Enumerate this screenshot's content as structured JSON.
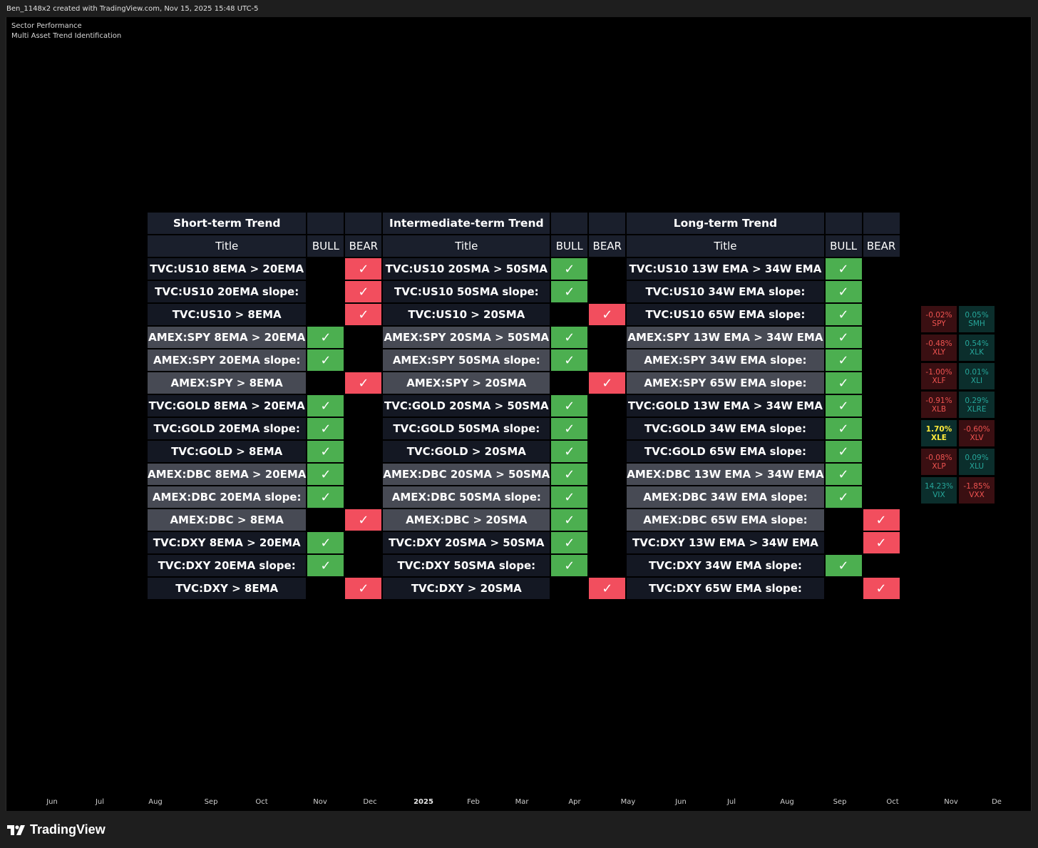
{
  "header": {
    "caption": "Ben_1148x2 created with TradingView.com, Nov 15, 2025 15:48 UTC-5"
  },
  "indicators": {
    "line1": "Sector Performance",
    "line2": "Multi Asset Trend Identification"
  },
  "table": {
    "groups": [
      {
        "title": "Short-term Trend",
        "col_title": "Title",
        "col_bull": "BULL",
        "col_bear": "BEAR"
      },
      {
        "title": "Intermediate-term Trend",
        "col_title": "Title",
        "col_bull": "BULL",
        "col_bear": "BEAR"
      },
      {
        "title": "Long-term Trend",
        "col_title": "Title",
        "col_bull": "BULL",
        "col_bear": "BEAR"
      }
    ],
    "check": "✓",
    "rows": [
      {
        "shade": "dark",
        "cells": [
          {
            "t": "TVC:US10 8EMA > 20EMA",
            "s": "bear"
          },
          {
            "t": "TVC:US10 20SMA > 50SMA",
            "s": "bull"
          },
          {
            "t": "TVC:US10 13W EMA > 34W EMA",
            "s": "bull"
          }
        ]
      },
      {
        "shade": "dark",
        "cells": [
          {
            "t": "TVC:US10 20EMA slope:",
            "s": "bear"
          },
          {
            "t": "TVC:US10 50SMA slope:",
            "s": "bull"
          },
          {
            "t": "TVC:US10 34W EMA slope:",
            "s": "bull"
          }
        ]
      },
      {
        "shade": "dark",
        "cells": [
          {
            "t": "TVC:US10 > 8EMA",
            "s": "bear"
          },
          {
            "t": "TVC:US10 > 20SMA",
            "s": "bear"
          },
          {
            "t": "TVC:US10 65W EMA slope:",
            "s": "bull"
          }
        ]
      },
      {
        "shade": "light",
        "cells": [
          {
            "t": "AMEX:SPY 8EMA > 20EMA",
            "s": "bull"
          },
          {
            "t": "AMEX:SPY 20SMA > 50SMA",
            "s": "bull"
          },
          {
            "t": "AMEX:SPY 13W EMA > 34W EMA",
            "s": "bull"
          }
        ]
      },
      {
        "shade": "light",
        "cells": [
          {
            "t": "AMEX:SPY 20EMA slope:",
            "s": "bull"
          },
          {
            "t": "AMEX:SPY 50SMA slope:",
            "s": "bull"
          },
          {
            "t": "AMEX:SPY 34W EMA slope:",
            "s": "bull"
          }
        ]
      },
      {
        "shade": "light",
        "cells": [
          {
            "t": "AMEX:SPY > 8EMA",
            "s": "bear"
          },
          {
            "t": "AMEX:SPY > 20SMA",
            "s": "bear"
          },
          {
            "t": "AMEX:SPY 65W EMA slope:",
            "s": "bull"
          }
        ]
      },
      {
        "shade": "dark",
        "cells": [
          {
            "t": "TVC:GOLD 8EMA > 20EMA",
            "s": "bull"
          },
          {
            "t": "TVC:GOLD 20SMA > 50SMA",
            "s": "bull"
          },
          {
            "t": "TVC:GOLD 13W EMA > 34W EMA",
            "s": "bull"
          }
        ]
      },
      {
        "shade": "dark",
        "cells": [
          {
            "t": "TVC:GOLD 20EMA slope:",
            "s": "bull"
          },
          {
            "t": "TVC:GOLD 50SMA slope:",
            "s": "bull"
          },
          {
            "t": "TVC:GOLD 34W EMA slope:",
            "s": "bull"
          }
        ]
      },
      {
        "shade": "dark",
        "cells": [
          {
            "t": "TVC:GOLD > 8EMA",
            "s": "bull"
          },
          {
            "t": "TVC:GOLD > 20SMA",
            "s": "bull"
          },
          {
            "t": "TVC:GOLD 65W EMA slope:",
            "s": "bull"
          }
        ]
      },
      {
        "shade": "light",
        "cells": [
          {
            "t": "AMEX:DBC 8EMA > 20EMA",
            "s": "bull"
          },
          {
            "t": "AMEX:DBC 20SMA > 50SMA",
            "s": "bull"
          },
          {
            "t": "AMEX:DBC 13W EMA > 34W EMA",
            "s": "bull"
          }
        ]
      },
      {
        "shade": "light",
        "cells": [
          {
            "t": "AMEX:DBC 20EMA slope:",
            "s": "bull"
          },
          {
            "t": "AMEX:DBC 50SMA slope:",
            "s": "bull"
          },
          {
            "t": "AMEX:DBC 34W EMA slope:",
            "s": "bull"
          }
        ]
      },
      {
        "shade": "light",
        "cells": [
          {
            "t": "AMEX:DBC > 8EMA",
            "s": "bear"
          },
          {
            "t": "AMEX:DBC > 20SMA",
            "s": "bull"
          },
          {
            "t": "AMEX:DBC 65W EMA slope:",
            "s": "bear"
          }
        ]
      },
      {
        "shade": "dark",
        "cells": [
          {
            "t": "TVC:DXY 8EMA > 20EMA",
            "s": "bull"
          },
          {
            "t": "TVC:DXY 20SMA > 50SMA",
            "s": "bull"
          },
          {
            "t": "TVC:DXY 13W EMA > 34W EMA",
            "s": "bear"
          }
        ]
      },
      {
        "shade": "dark",
        "cells": [
          {
            "t": "TVC:DXY 20EMA slope:",
            "s": "bull"
          },
          {
            "t": "TVC:DXY 50SMA slope:",
            "s": "bull"
          },
          {
            "t": "TVC:DXY 34W EMA slope:",
            "s": "bull"
          }
        ]
      },
      {
        "shade": "dark",
        "cells": [
          {
            "t": "TVC:DXY > 8EMA",
            "s": "bear"
          },
          {
            "t": "TVC:DXY > 20SMA",
            "s": "bear"
          },
          {
            "t": "TVC:DXY 65W EMA slope:",
            "s": "bear"
          }
        ]
      }
    ]
  },
  "sectors": [
    {
      "pct": "-0.02%",
      "sym": "SPY",
      "kind": "neg"
    },
    {
      "pct": "0.05%",
      "sym": "SMH",
      "kind": "pos"
    },
    {
      "pct": "-0.48%",
      "sym": "XLY",
      "kind": "neg"
    },
    {
      "pct": "0.54%",
      "sym": "XLK",
      "kind": "pos"
    },
    {
      "pct": "-1.00%",
      "sym": "XLF",
      "kind": "neg"
    },
    {
      "pct": "0.01%",
      "sym": "XLI",
      "kind": "pos"
    },
    {
      "pct": "-0.91%",
      "sym": "XLB",
      "kind": "neg"
    },
    {
      "pct": "0.29%",
      "sym": "XLRE",
      "kind": "pos"
    },
    {
      "pct": "1.70%",
      "sym": "XLE",
      "kind": "top"
    },
    {
      "pct": "-0.60%",
      "sym": "XLV",
      "kind": "neg"
    },
    {
      "pct": "-0.08%",
      "sym": "XLP",
      "kind": "neg"
    },
    {
      "pct": "0.09%",
      "sym": "XLU",
      "kind": "pos"
    },
    {
      "pct": "14.23%",
      "sym": "VIX",
      "kind": "vix"
    },
    {
      "pct": "-1.85%",
      "sym": "VXX",
      "kind": "vxx"
    }
  ],
  "time_axis": [
    {
      "label": "Jun",
      "year": false
    },
    {
      "label": "Jul",
      "year": false
    },
    {
      "label": "Aug",
      "year": false
    },
    {
      "label": "Sep",
      "year": false
    },
    {
      "label": "Oct",
      "year": false
    },
    {
      "label": "Nov",
      "year": false
    },
    {
      "label": "Dec",
      "year": false
    },
    {
      "label": "2025",
      "year": true
    },
    {
      "label": "Feb",
      "year": false
    },
    {
      "label": "Mar",
      "year": false
    },
    {
      "label": "Apr",
      "year": false
    },
    {
      "label": "May",
      "year": false
    },
    {
      "label": "Jun",
      "year": false
    },
    {
      "label": "Jul",
      "year": false
    },
    {
      "label": "Aug",
      "year": false
    },
    {
      "label": "Sep",
      "year": false
    },
    {
      "label": "Oct",
      "year": false
    },
    {
      "label": "Nov",
      "year": false
    },
    {
      "label": "De",
      "year": false
    }
  ],
  "footer": {
    "brand": "TradingView"
  }
}
